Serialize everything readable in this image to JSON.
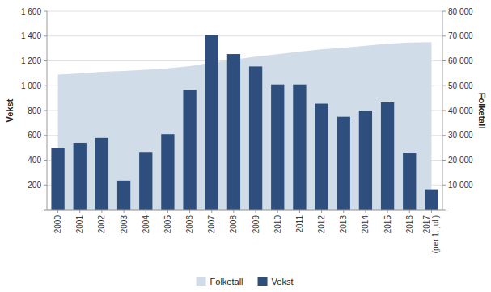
{
  "chart_data": {
    "type": "bar",
    "categories": [
      "2000",
      "2001",
      "2002",
      "2003",
      "2004",
      "2005",
      "2006",
      "2007",
      "2008",
      "2009",
      "2010",
      "2011",
      "2012",
      "2013",
      "2014",
      "2015",
      "2016",
      "2017\n(per 1. juli)"
    ],
    "series": [
      {
        "name": "Folketall",
        "type": "area",
        "axis": "y2",
        "color": "#D0DCE8",
        "values": [
          54500,
          55000,
          55600,
          55900,
          56400,
          57000,
          57900,
          59300,
          60500,
          61700,
          62700,
          63700,
          64600,
          65300,
          66100,
          66900,
          67400,
          67600
        ]
      },
      {
        "name": "Vekst",
        "type": "bar",
        "color": "#2E4E7E",
        "values": [
          500,
          540,
          580,
          235,
          460,
          610,
          965,
          1410,
          1255,
          1155,
          1010,
          1010,
          855,
          750,
          800,
          865,
          455,
          165
        ]
      }
    ],
    "y_label": "Vekst",
    "y2_label": "Folketall",
    "ylim": [
      0,
      1600
    ],
    "yticks": [
      {
        "value": 0,
        "label": "-"
      },
      200,
      400,
      600,
      800,
      {
        "value": 1000,
        "label": "1 000"
      },
      {
        "value": 1200,
        "label": "1 200"
      },
      {
        "value": 1400,
        "label": "1 400"
      },
      {
        "value": 1600,
        "label": "1 600"
      }
    ],
    "y2lim": [
      0,
      80000
    ],
    "y2ticks": [
      {
        "value": 0,
        "label": "-"
      },
      {
        "value": 10000,
        "label": "10 000"
      },
      {
        "value": 20000,
        "label": "20 000"
      },
      {
        "value": 30000,
        "label": "30 000"
      },
      {
        "value": 40000,
        "label": "40 000"
      },
      {
        "value": 50000,
        "label": "50 000"
      },
      {
        "value": 60000,
        "label": "60 000"
      },
      {
        "value": 70000,
        "label": "70 000"
      },
      {
        "value": 80000,
        "label": "80 000"
      }
    ],
    "grid": true,
    "legend": "bottom"
  }
}
